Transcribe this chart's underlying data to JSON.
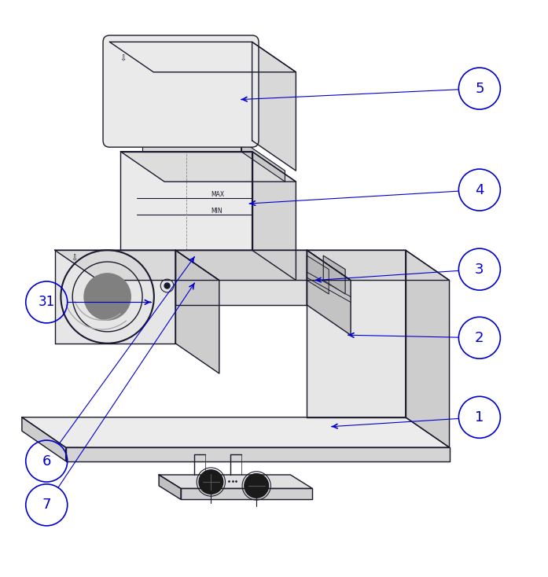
{
  "fig_width": 6.97,
  "fig_height": 7.34,
  "dpi": 100,
  "bg_color": "#ffffff",
  "line_color": "#1a1a2e",
  "blue_color": "#0000cd",
  "label_fontsize": 13
}
